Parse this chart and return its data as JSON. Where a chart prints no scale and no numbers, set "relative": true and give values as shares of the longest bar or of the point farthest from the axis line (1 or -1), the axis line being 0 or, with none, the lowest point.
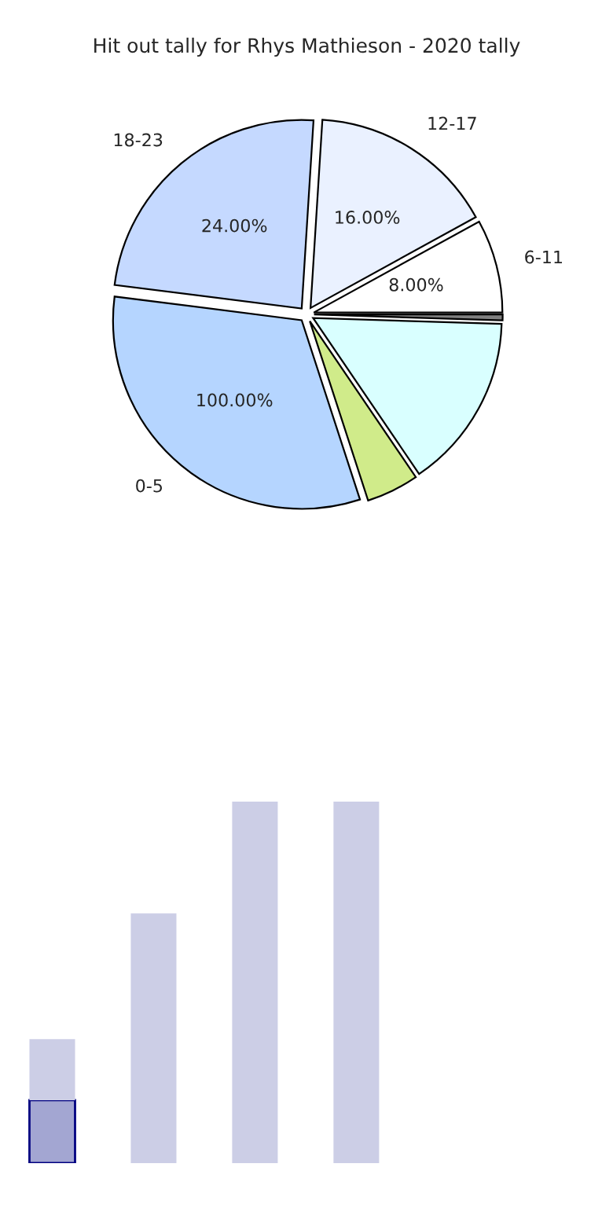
{
  "chart_data": [
    {
      "type": "pie",
      "title": "Hit out tally for Rhys Mathieson - 2020 tally",
      "categories": [
        "6-11",
        "12-17",
        "18-23",
        "0-5",
        null,
        null,
        null
      ],
      "values": [
        8,
        16,
        24,
        32,
        4.5,
        15,
        0.5
      ],
      "value_labels": [
        "8.00%",
        "16.00%",
        "24.00%",
        null,
        null,
        null,
        null
      ],
      "annotations": [
        {
          "text": "100.00%",
          "x": "0-5"
        }
      ],
      "colors": [
        "#ffffff",
        "#eaf1ff",
        "#c5d9ff",
        "#b5d5ff",
        "#d0eb8a",
        "#d9ffff",
        "#808080"
      ]
    },
    {
      "type": "bar",
      "relative": true,
      "stacked": true,
      "categories": [
        null,
        null,
        null,
        null
      ],
      "series": [
        {
          "color": "#a3a6d2",
          "values": [
            0.174,
            null,
            null,
            null
          ]
        },
        {
          "color": "#cccee6",
          "values": [
            0.169,
            0.691,
            1,
            1
          ]
        }
      ]
    }
  ]
}
